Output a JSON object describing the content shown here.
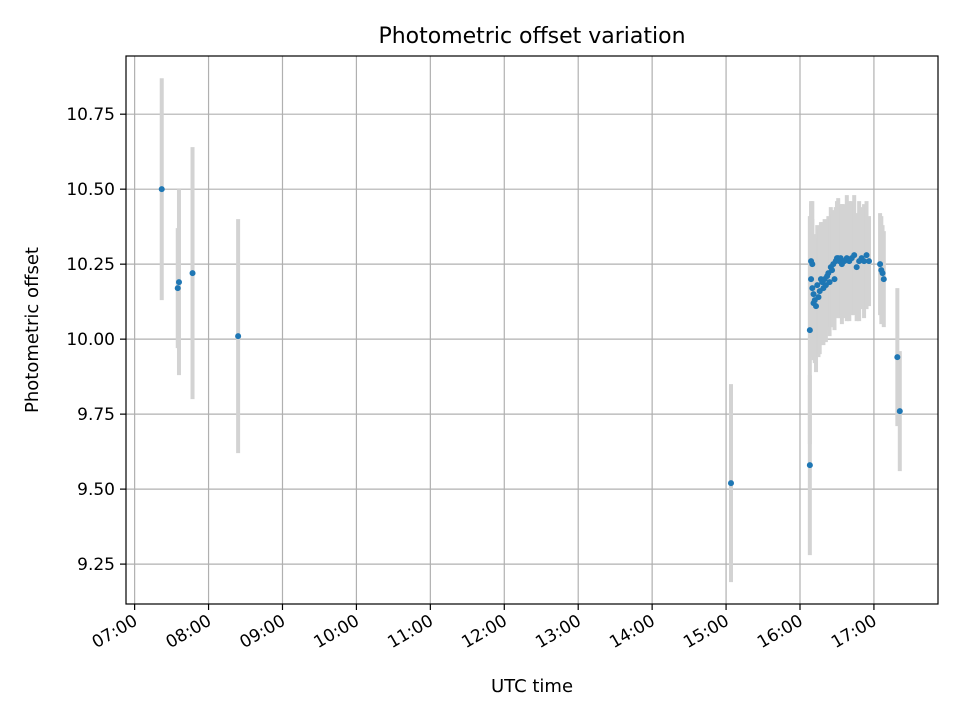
{
  "chart_data": {
    "type": "scatter",
    "title": "Photometric offset variation",
    "xlabel": "UTC time",
    "ylabel": "Photometric offset",
    "x_unit": "UTC hour",
    "xlim": [
      "06:53",
      "17:52"
    ],
    "ylim": [
      9.117,
      10.944
    ],
    "grid": true,
    "x_ticks": [
      "07:00",
      "08:00",
      "09:00",
      "10:00",
      "11:00",
      "12:00",
      "13:00",
      "14:00",
      "15:00",
      "16:00",
      "17:00"
    ],
    "y_ticks": [
      "9.25",
      "9.50",
      "9.75",
      "10.00",
      "10.25",
      "10.50",
      "10.75"
    ],
    "marker_color": "#1f77b4",
    "errorbar_color": "#d3d3d3",
    "series": [
      {
        "x": [
          "07:22",
          "07:35",
          "07:36",
          "07:47",
          "08:24",
          "15:04",
          "16:08",
          "16:08",
          "16:09",
          "16:09",
          "16:10",
          "16:10",
          "16:11",
          "16:11",
          "16:12",
          "16:13",
          "16:14",
          "16:15",
          "16:16",
          "16:17",
          "16:18",
          "16:19",
          "16:20",
          "16:21",
          "16:22",
          "16:23",
          "16:24",
          "16:25",
          "16:26",
          "16:27",
          "16:28",
          "16:29",
          "16:30",
          "16:31",
          "16:32",
          "16:33",
          "16:34",
          "16:36",
          "16:38",
          "16:40",
          "16:42",
          "16:44",
          "16:46",
          "16:48",
          "16:50",
          "16:52",
          "16:54",
          "16:56",
          "17:05",
          "17:06",
          "17:07",
          "17:08",
          "17:19",
          "17:21"
        ],
        "y": [
          10.5,
          10.17,
          10.19,
          10.22,
          10.01,
          9.52,
          9.58,
          10.03,
          10.2,
          10.26,
          10.25,
          10.17,
          10.15,
          10.12,
          10.13,
          10.11,
          10.18,
          10.14,
          10.16,
          10.2,
          10.19,
          10.17,
          10.2,
          10.18,
          10.21,
          10.22,
          10.19,
          10.24,
          10.23,
          10.25,
          10.2,
          10.26,
          10.27,
          10.27,
          10.26,
          10.27,
          10.25,
          10.26,
          10.27,
          10.26,
          10.27,
          10.28,
          10.24,
          10.26,
          10.27,
          10.26,
          10.28,
          10.26,
          10.25,
          10.23,
          10.22,
          10.2,
          9.94,
          9.76
        ],
        "error": [
          0.37,
          0.2,
          0.31,
          0.42,
          0.39,
          0.33,
          0.3,
          0.38,
          0.25,
          0.2,
          0.21,
          0.23,
          0.2,
          0.19,
          0.21,
          0.22,
          0.2,
          0.2,
          0.21,
          0.19,
          0.2,
          0.19,
          0.2,
          0.19,
          0.18,
          0.19,
          0.18,
          0.2,
          0.19,
          0.18,
          0.17,
          0.18,
          0.19,
          0.2,
          0.19,
          0.18,
          0.2,
          0.19,
          0.21,
          0.2,
          0.19,
          0.2,
          0.18,
          0.2,
          0.17,
          0.19,
          0.18,
          0.15,
          0.17,
          0.18,
          0.16,
          0.16,
          0.23,
          0.2
        ]
      }
    ]
  }
}
